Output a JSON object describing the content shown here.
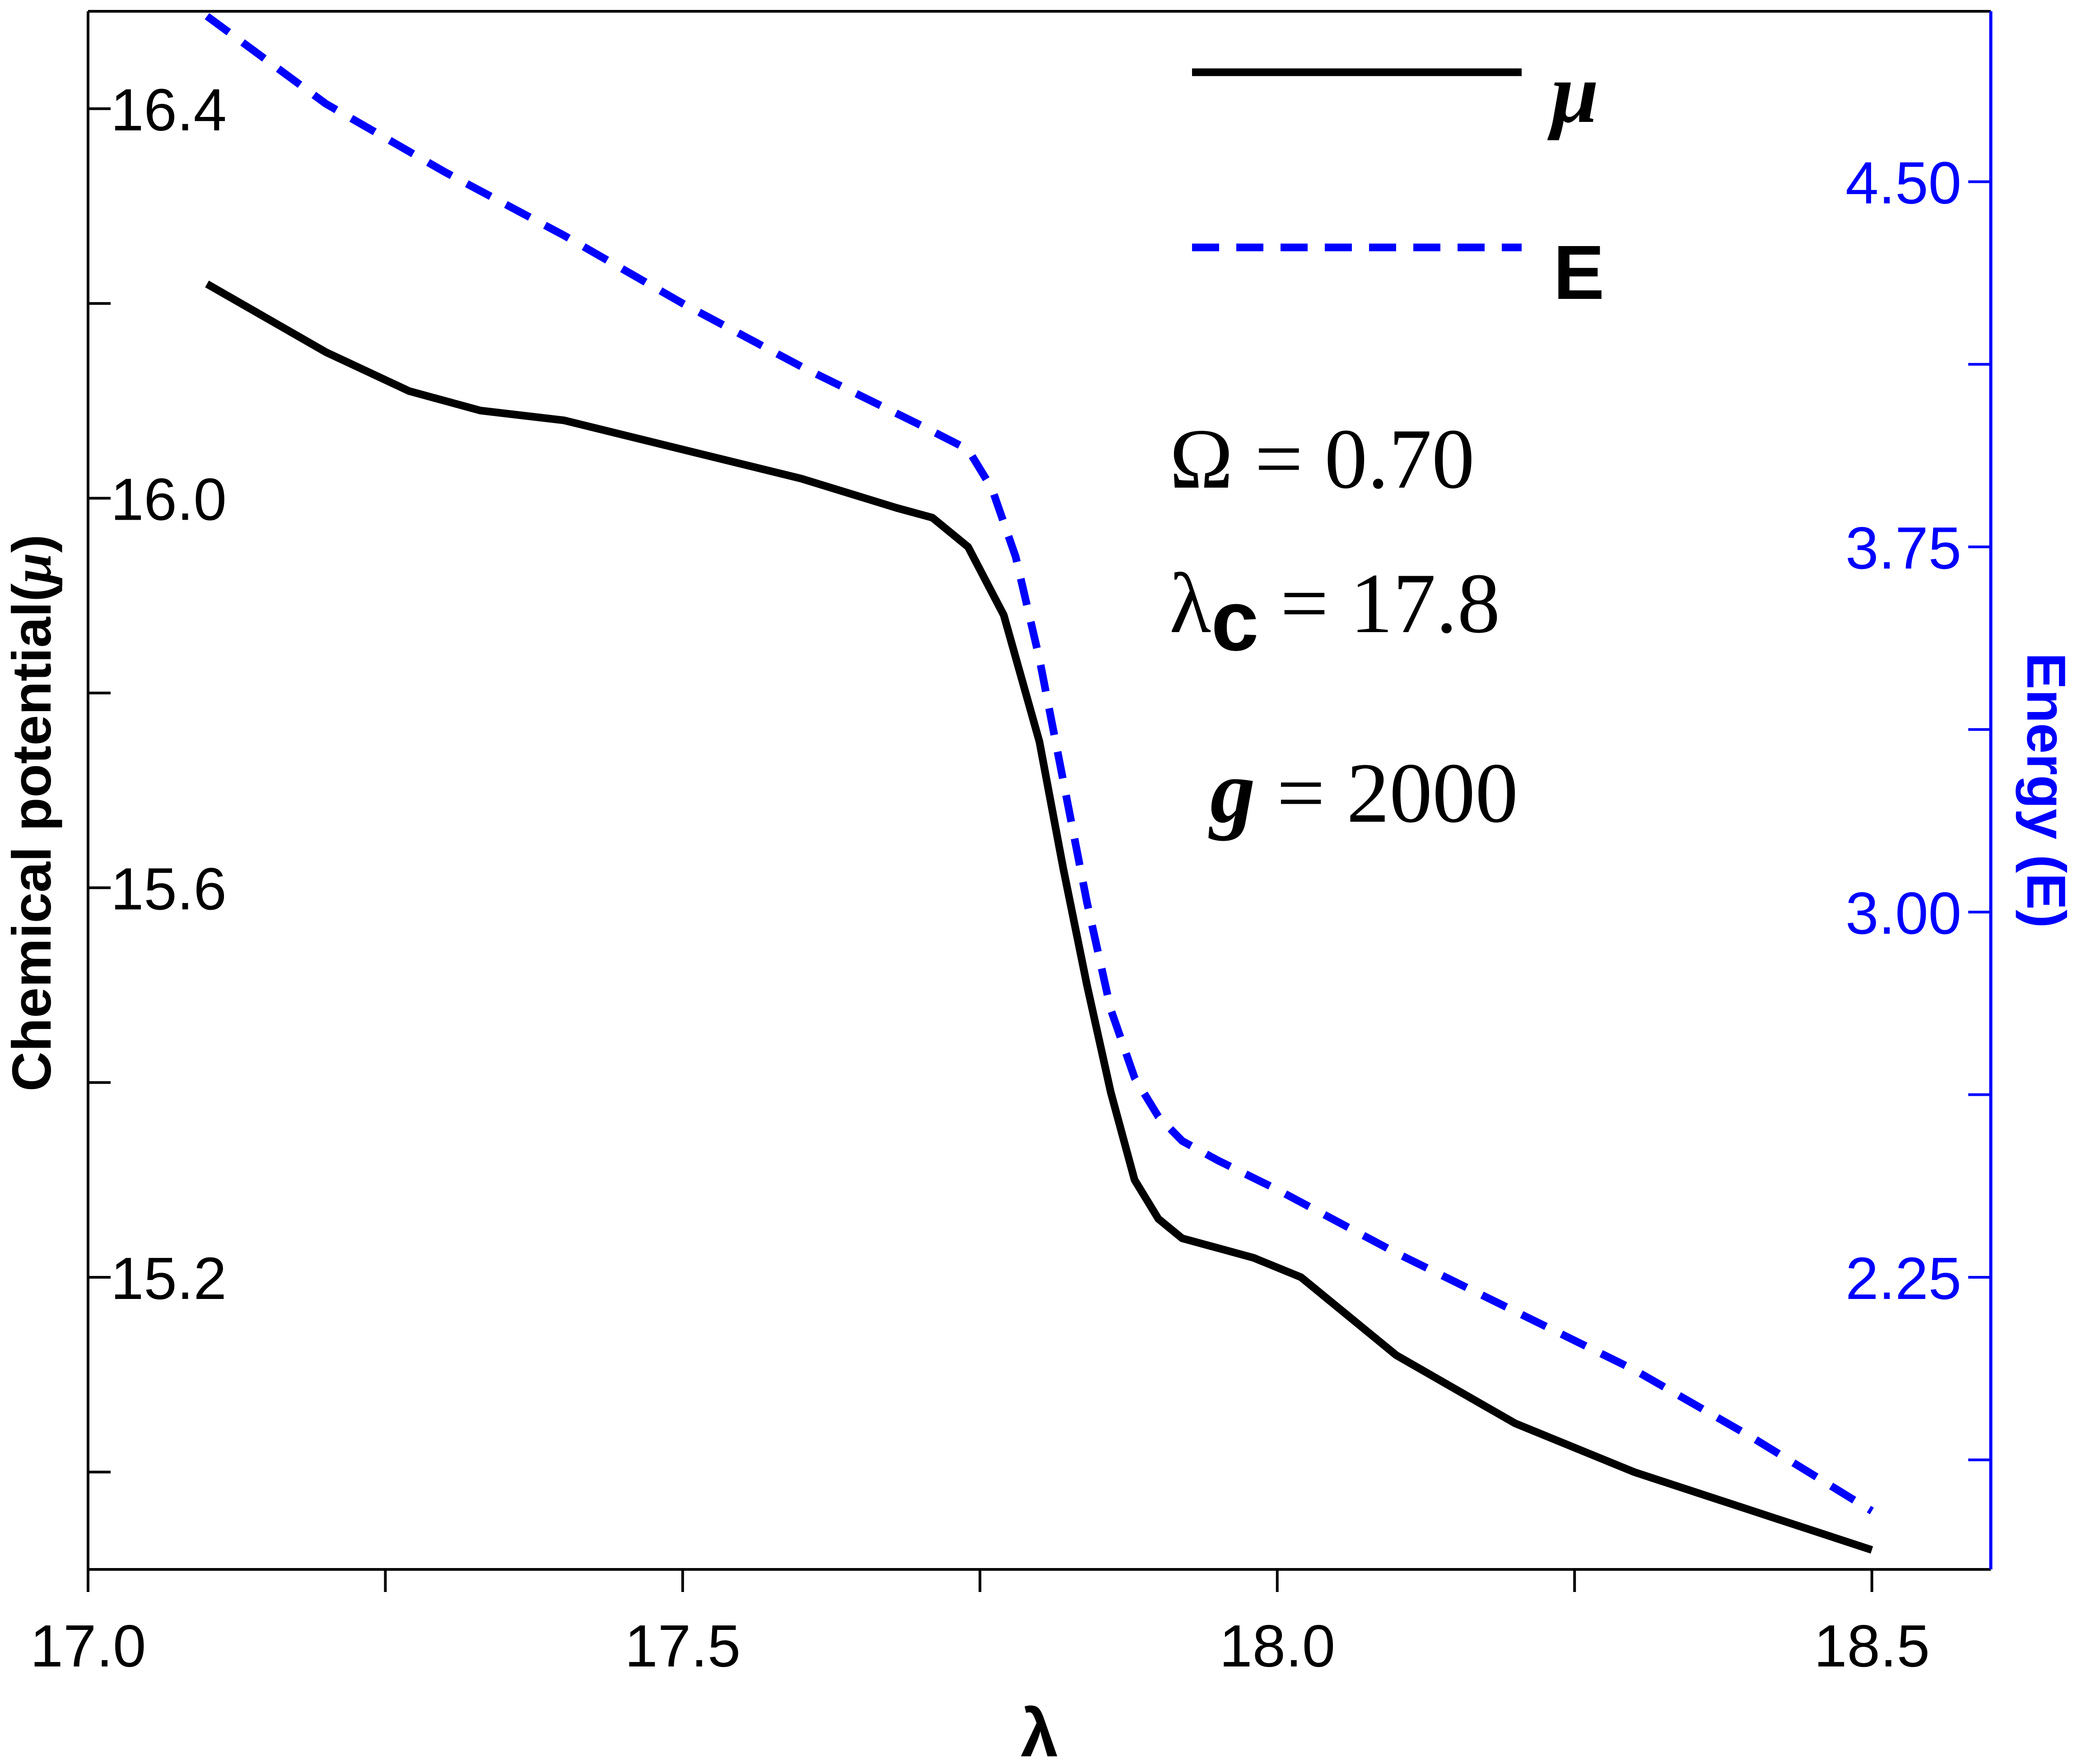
{
  "chart_data": {
    "type": "line",
    "x_axis": {
      "label": "λ",
      "range": [
        17.0,
        18.6
      ],
      "ticks": [
        "17.0",
        "17.5",
        "18.0",
        "18.5"
      ]
    },
    "y_left": {
      "label": "Chemical potential(μ)",
      "label_main": "Chemical potential(",
      "label_mu": "μ",
      "label_close": ")",
      "range": [
        14.9,
        16.5
      ],
      "ticks": [
        "16.4",
        "16.0",
        "15.6",
        "15.2"
      ],
      "color": "#000000"
    },
    "y_right": {
      "label": "Energy (E)",
      "range": [
        1.65,
        4.85
      ],
      "ticks": [
        "4.50",
        "3.75",
        "3.00",
        "2.25"
      ],
      "color": "#0000ff"
    },
    "series": [
      {
        "name": "μ",
        "axis": "left",
        "color": "#000000",
        "style": "solid",
        "x": [
          17.1,
          17.2,
          17.27,
          17.33,
          17.4,
          17.5,
          17.6,
          17.68,
          17.71,
          17.74,
          17.77,
          17.8,
          17.82,
          17.84,
          17.86,
          17.88,
          17.9,
          17.92,
          17.95,
          17.98,
          18.02,
          18.1,
          18.2,
          18.3,
          18.4,
          18.5
        ],
        "y": [
          16.22,
          16.15,
          16.11,
          16.09,
          16.08,
          16.05,
          16.02,
          15.99,
          15.98,
          15.95,
          15.88,
          15.75,
          15.62,
          15.5,
          15.39,
          15.3,
          15.26,
          15.24,
          15.23,
          15.22,
          15.2,
          15.12,
          15.05,
          15.0,
          14.96,
          14.92
        ]
      },
      {
        "name": "E",
        "axis": "right",
        "color": "#0000ff",
        "style": "dashed",
        "x": [
          17.1,
          17.2,
          17.3,
          17.4,
          17.5,
          17.6,
          17.7,
          17.74,
          17.76,
          17.78,
          17.8,
          17.82,
          17.84,
          17.86,
          17.88,
          17.9,
          17.92,
          17.95,
          18.0,
          18.1,
          18.2,
          18.3,
          18.4,
          18.5
        ],
        "y": [
          4.84,
          4.66,
          4.52,
          4.39,
          4.25,
          4.12,
          4.0,
          3.95,
          3.87,
          3.73,
          3.52,
          3.27,
          3.02,
          2.8,
          2.66,
          2.58,
          2.53,
          2.49,
          2.43,
          2.3,
          2.18,
          2.06,
          1.92,
          1.77
        ]
      }
    ],
    "legend": {
      "position": "top-right",
      "entries": [
        {
          "label": "μ",
          "color": "#000000",
          "style": "solid"
        },
        {
          "label": "E",
          "color": "#0000ff",
          "style": "dashed"
        }
      ]
    },
    "annotations": {
      "omega": "Ω = 0.70",
      "lambda_c_symbol": "λ",
      "lambda_c_sub": "c",
      "lambda_c_value": " = 17.8",
      "g_symbol": "g",
      "g_value": " = 2000"
    },
    "grid": false
  }
}
